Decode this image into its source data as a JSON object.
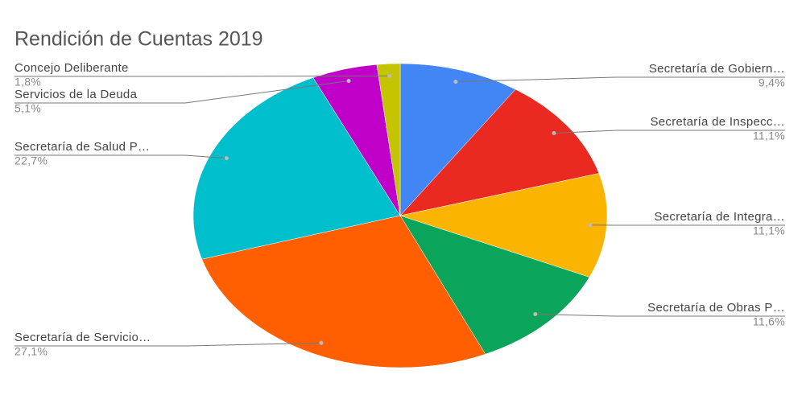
{
  "chart_data": {
    "type": "pie",
    "title": "Rendición de Cuentas 2019",
    "categories": [
      "Secretaría de Gobiern…",
      "Secretaría de Inspecc…",
      "Secretaría de Integra…",
      "Secretaría de Obras P…",
      "Secretaría de Servicio…",
      "Secretaría de Salud P…",
      "Servicios de la Deuda",
      "Concejo Deliberante"
    ],
    "values": [
      9.4,
      11.1,
      11.1,
      11.6,
      27.1,
      22.7,
      5.1,
      1.8
    ],
    "value_labels": [
      "9,4%",
      "11,1%",
      "11,1%",
      "11,6%",
      "27,1%",
      "22,7%",
      "5,1%",
      "1,8%"
    ],
    "colors": [
      "#4285f4",
      "#ea2a21",
      "#fbb400",
      "#0aa55a",
      "#ff5f00",
      "#00bfcc",
      "#c000c8",
      "#c4c400"
    ]
  }
}
